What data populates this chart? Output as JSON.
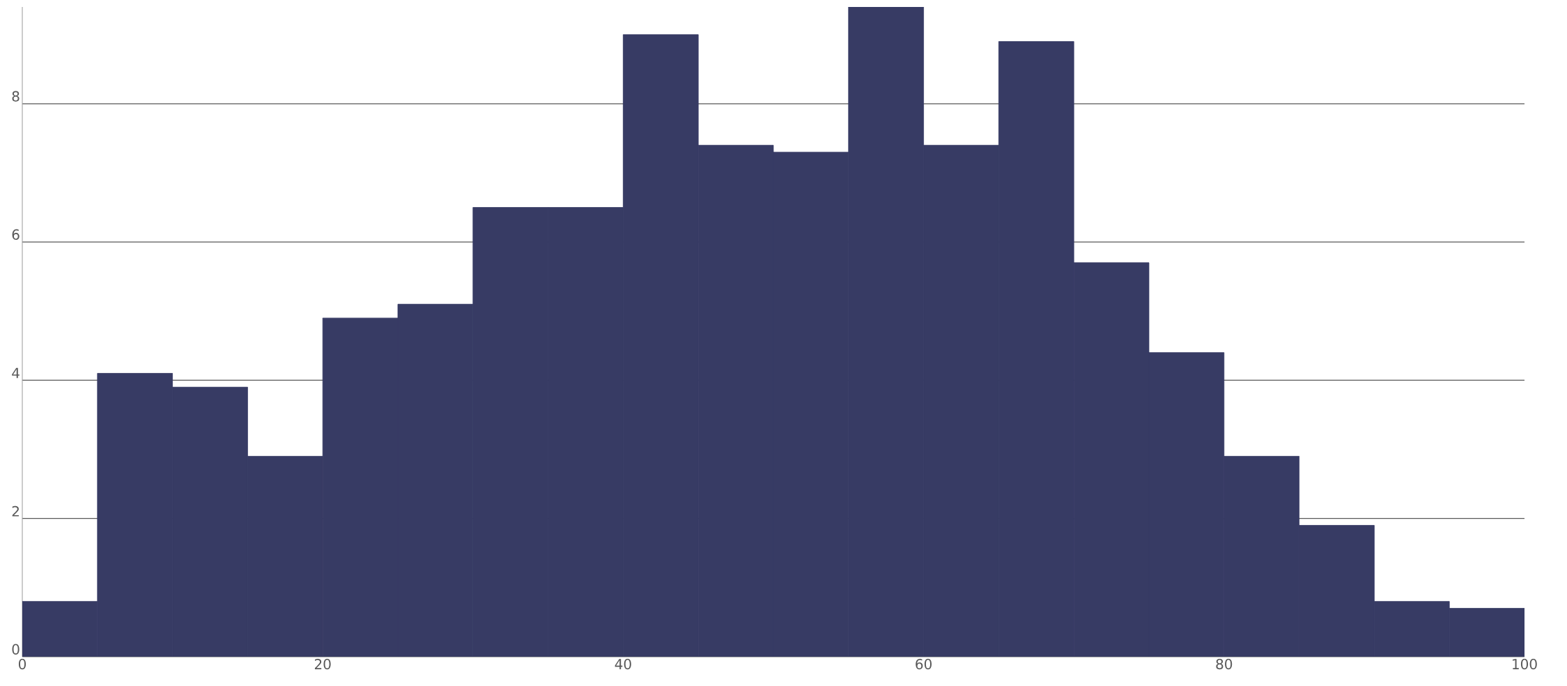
{
  "chart_data": {
    "type": "histogram",
    "bins": [
      0,
      5,
      10,
      15,
      20,
      25,
      30,
      35,
      40,
      45,
      50,
      55,
      60,
      65,
      70,
      75,
      80,
      85,
      90,
      95,
      100
    ],
    "values": [
      0.8,
      4.1,
      3.9,
      2.9,
      4.9,
      5.1,
      6.5,
      6.5,
      9.0,
      7.4,
      7.3,
      9.4,
      7.4,
      8.9,
      5.7,
      4.4,
      2.9,
      1.9,
      0.8,
      0.7
    ],
    "color": "#373b64",
    "xlim": [
      0,
      100
    ],
    "xticks": [
      0,
      20,
      40,
      60,
      80,
      100
    ],
    "ylim": [
      0,
      9.4
    ],
    "yticks": [
      0,
      2,
      4,
      6,
      8
    ],
    "grid": "y"
  }
}
